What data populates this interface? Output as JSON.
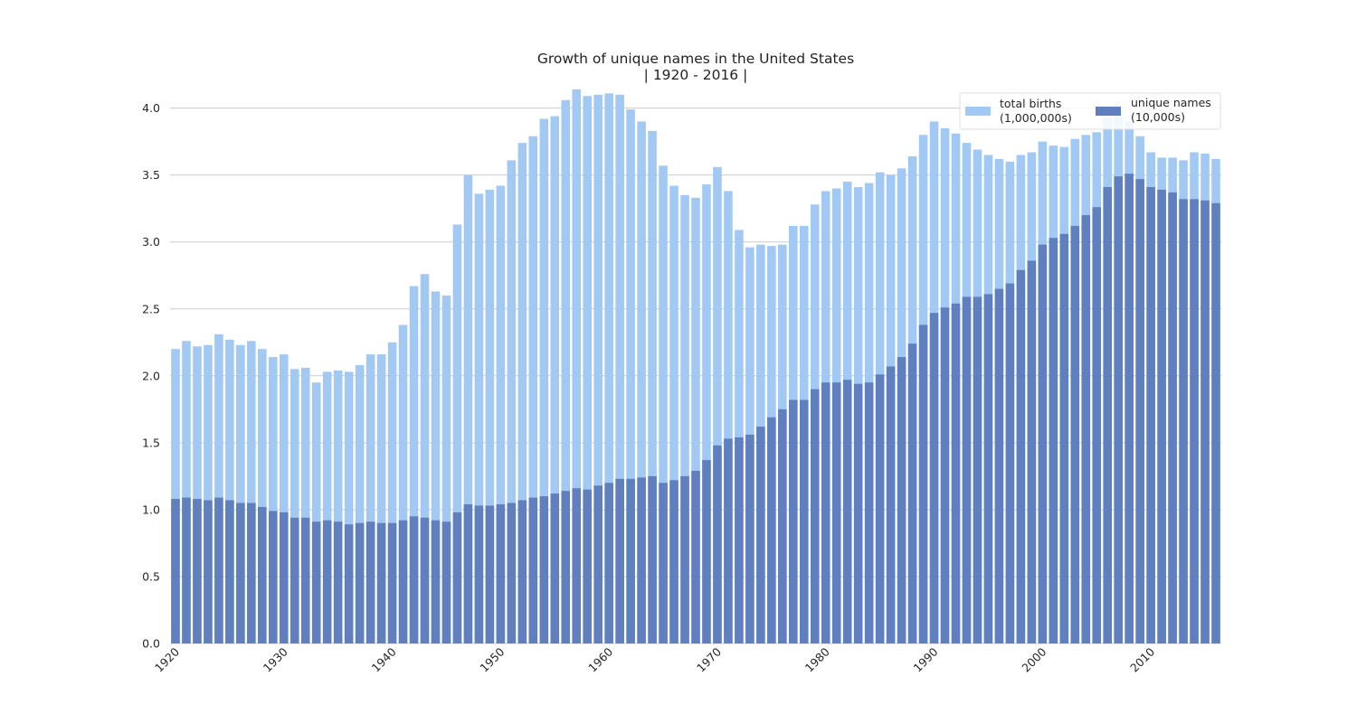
{
  "chart_data": {
    "type": "bar",
    "title": "Growth of unique names in the United States",
    "subtitle": "| 1920 - 2016 |",
    "xlabel": "",
    "ylabel": "",
    "ylim": [
      0,
      4.2
    ],
    "y_ticks": [
      0.0,
      0.5,
      1.0,
      1.5,
      2.0,
      2.5,
      3.0,
      3.5,
      4.0
    ],
    "y_tick_labels": [
      "0.0",
      "0.5",
      "1.0",
      "1.5",
      "2.0",
      "2.5",
      "3.0",
      "3.5",
      "4.0"
    ],
    "x_tick_labels": [
      "1920",
      "1930",
      "1940",
      "1950",
      "1960",
      "1970",
      "1980",
      "1990",
      "2000",
      "2010"
    ],
    "grid": "horizontal",
    "legend_placement": "top-right",
    "categories": [
      1920,
      1921,
      1922,
      1923,
      1924,
      1925,
      1926,
      1927,
      1928,
      1929,
      1930,
      1931,
      1932,
      1933,
      1934,
      1935,
      1936,
      1937,
      1938,
      1939,
      1940,
      1941,
      1942,
      1943,
      1944,
      1945,
      1946,
      1947,
      1948,
      1949,
      1950,
      1951,
      1952,
      1953,
      1954,
      1955,
      1956,
      1957,
      1958,
      1959,
      1960,
      1961,
      1962,
      1963,
      1964,
      1965,
      1966,
      1967,
      1968,
      1969,
      1970,
      1971,
      1972,
      1973,
      1974,
      1975,
      1976,
      1977,
      1978,
      1979,
      1980,
      1981,
      1982,
      1983,
      1984,
      1985,
      1986,
      1987,
      1988,
      1989,
      1990,
      1991,
      1992,
      1993,
      1994,
      1995,
      1996,
      1997,
      1998,
      1999,
      2000,
      2001,
      2002,
      2003,
      2004,
      2005,
      2006,
      2007,
      2008,
      2009,
      2010,
      2011,
      2012,
      2013,
      2014,
      2015,
      2016
    ],
    "series": [
      {
        "name": "total births\n(1,000,000s)",
        "name_lines": [
          "total births",
          "(1,000,000s)"
        ],
        "color": "#a1c9f4",
        "values": [
          2.2,
          2.26,
          2.22,
          2.23,
          2.31,
          2.27,
          2.23,
          2.26,
          2.2,
          2.14,
          2.16,
          2.05,
          2.06,
          1.95,
          2.03,
          2.04,
          2.03,
          2.08,
          2.16,
          2.16,
          2.25,
          2.38,
          2.67,
          2.76,
          2.63,
          2.6,
          3.13,
          3.5,
          3.36,
          3.39,
          3.42,
          3.61,
          3.74,
          3.79,
          3.92,
          3.94,
          4.06,
          4.14,
          4.09,
          4.1,
          4.11,
          4.1,
          3.99,
          3.9,
          3.83,
          3.57,
          3.42,
          3.35,
          3.33,
          3.43,
          3.56,
          3.38,
          3.09,
          2.96,
          2.98,
          2.97,
          2.98,
          3.12,
          3.12,
          3.28,
          3.38,
          3.4,
          3.45,
          3.41,
          3.44,
          3.52,
          3.5,
          3.55,
          3.64,
          3.8,
          3.9,
          3.85,
          3.81,
          3.74,
          3.69,
          3.65,
          3.62,
          3.6,
          3.65,
          3.67,
          3.75,
          3.72,
          3.71,
          3.77,
          3.8,
          3.82,
          3.93,
          3.97,
          3.9,
          3.79,
          3.67,
          3.63,
          3.63,
          3.61,
          3.67,
          3.66,
          3.62
        ]
      },
      {
        "name": "unique names\n(10,000s)",
        "name_lines": [
          "unique names",
          "(10,000s)"
        ],
        "color": "#5f7fbf",
        "values": [
          1.08,
          1.09,
          1.08,
          1.07,
          1.09,
          1.07,
          1.05,
          1.05,
          1.02,
          0.99,
          0.98,
          0.94,
          0.94,
          0.91,
          0.92,
          0.91,
          0.89,
          0.9,
          0.91,
          0.9,
          0.9,
          0.92,
          0.95,
          0.94,
          0.92,
          0.91,
          0.98,
          1.04,
          1.03,
          1.03,
          1.04,
          1.05,
          1.07,
          1.09,
          1.1,
          1.12,
          1.14,
          1.16,
          1.15,
          1.18,
          1.2,
          1.23,
          1.23,
          1.24,
          1.25,
          1.2,
          1.22,
          1.25,
          1.29,
          1.37,
          1.48,
          1.53,
          1.54,
          1.56,
          1.62,
          1.69,
          1.75,
          1.82,
          1.82,
          1.9,
          1.95,
          1.95,
          1.97,
          1.94,
          1.95,
          2.01,
          2.07,
          2.14,
          2.24,
          2.38,
          2.47,
          2.51,
          2.54,
          2.59,
          2.59,
          2.61,
          2.65,
          2.69,
          2.79,
          2.86,
          2.98,
          3.03,
          3.06,
          3.12,
          3.2,
          3.26,
          3.41,
          3.49,
          3.51,
          3.47,
          3.41,
          3.39,
          3.37,
          3.32,
          3.32,
          3.31,
          3.29
        ]
      }
    ]
  }
}
